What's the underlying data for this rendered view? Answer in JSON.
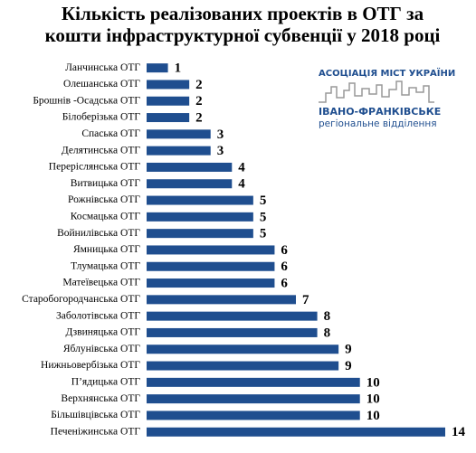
{
  "chart_data": {
    "type": "bar",
    "orientation": "horizontal",
    "title": [
      "Кількість реалізованих проектів в ОТГ за",
      "кошти інфраструктурної субвенції у 2018 році"
    ],
    "categories": [
      "Ланчинська ОТГ",
      "Олешанська ОТГ",
      "Брошнів -Осадська ОТГ",
      "Білоберізька ОТГ",
      "Спаська ОТГ",
      "Делятинська ОТГ",
      "Переріслянська ОТГ",
      "Витвицька ОТГ",
      "Рожнівська ОТГ",
      "Космацька ОТГ",
      "Войнилівська ОТГ",
      "Ямницька ОТГ",
      "Тлумацька ОТГ",
      "Матеївецька ОТГ",
      "Старобогородчанська ОТГ",
      "Заболотівська ОТГ",
      "Дзвиняцька ОТГ",
      "Яблунівська ОТГ",
      "Нижньовербізька ОТГ",
      "П’ядицька ОТГ",
      "Верхнянська ОТГ",
      "Більшівцівська ОТГ",
      "Печеніжинська ОТГ"
    ],
    "values": [
      1,
      2,
      2,
      2,
      3,
      3,
      4,
      4,
      5,
      5,
      5,
      6,
      6,
      6,
      7,
      8,
      8,
      9,
      9,
      10,
      10,
      10,
      14
    ],
    "color": "#1f4e8f"
  },
  "logo": {
    "line1": "АСОЦІАЦІЯ МІСТ УКРАЇНИ",
    "line2": "ІВАНО-ФРАНКІВСЬКЕ",
    "line3": "регіональне відділення"
  }
}
